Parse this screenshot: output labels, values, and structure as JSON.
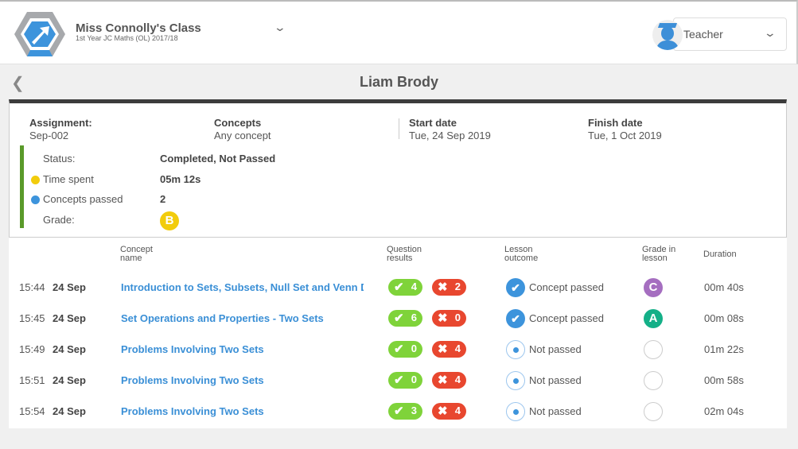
{
  "header": {
    "class_title": "Miss Connolly's Class",
    "class_subtitle": "1st Year JC Maths (OL) 2017/18",
    "role": "Teacher"
  },
  "student_name": "Liam Brody",
  "assignment": {
    "assignment_label": "Assignment:",
    "assignment_value": "Sep-002",
    "concepts_label": "Concepts",
    "concepts_value": "Any concept",
    "start_label": "Start date",
    "start_value": "Tue, 24 Sep 2019",
    "finish_label": "Finish date",
    "finish_value": "Tue, 1 Oct 2019"
  },
  "summary": {
    "status_label": "Status:",
    "status_value": "Completed, Not Passed",
    "time_label": "Time spent",
    "time_value": "05m 12s",
    "concepts_label": "Concepts passed",
    "concepts_value": "2",
    "grade_label": "Grade:",
    "grade_value": "B",
    "grade_color": "#f2cc0c"
  },
  "columns": {
    "concept_name": "Concept name",
    "question_results": "Question results",
    "lesson_outcome": "Lesson outcome",
    "grade_in_lesson": "Grade in lesson",
    "duration": "Duration"
  },
  "colors": {
    "correct": "#7fd33a",
    "incorrect": "#e8472f",
    "link": "#3a8fd6",
    "accent_bar": "#5a9a2a"
  },
  "rows": [
    {
      "time": "15:44",
      "date": "24 Sep",
      "concept": "Introduction to Sets, Subsets, Null Set and Venn Dia...",
      "correct": "4",
      "incorrect": "2",
      "outcome": "Concept passed",
      "passed": true,
      "grade": "C",
      "grade_color": "#a56ec0",
      "duration": "00m 40s"
    },
    {
      "time": "15:45",
      "date": "24 Sep",
      "concept": "Set Operations and Properties - Two Sets",
      "correct": "6",
      "incorrect": "0",
      "outcome": "Concept passed",
      "passed": true,
      "grade": "A",
      "grade_color": "#14b088",
      "duration": "00m 08s"
    },
    {
      "time": "15:49",
      "date": "24 Sep",
      "concept": "Problems Involving Two Sets",
      "correct": "0",
      "incorrect": "4",
      "outcome": "Not passed",
      "passed": false,
      "grade": "",
      "grade_color": "",
      "duration": "01m 22s"
    },
    {
      "time": "15:51",
      "date": "24 Sep",
      "concept": "Problems Involving Two Sets",
      "correct": "0",
      "incorrect": "4",
      "outcome": "Not passed",
      "passed": false,
      "grade": "",
      "grade_color": "",
      "duration": "00m 58s"
    },
    {
      "time": "15:54",
      "date": "24 Sep",
      "concept": "Problems Involving Two Sets",
      "correct": "3",
      "incorrect": "4",
      "outcome": "Not passed",
      "passed": false,
      "grade": "",
      "grade_color": "",
      "duration": "02m 04s"
    }
  ]
}
